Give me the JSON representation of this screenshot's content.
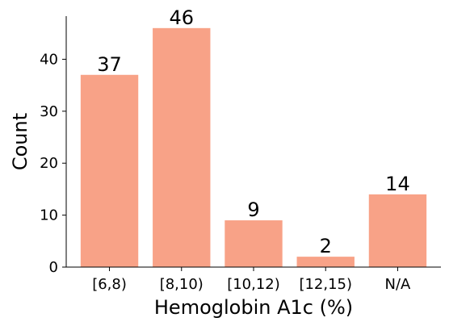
{
  "chart_data": {
    "type": "bar",
    "title": "",
    "xlabel": "Hemoglobin A1c (%)",
    "ylabel": "Count",
    "categories": [
      "[6,8)",
      "[8,10)",
      "[10,12)",
      "[12,15)",
      "N/A"
    ],
    "values": [
      37,
      46,
      9,
      2,
      14
    ],
    "data_labels": [
      "37",
      "46",
      "9",
      "2",
      "14"
    ],
    "ylim": [
      0,
      48.3
    ],
    "yticks": [
      0,
      10,
      20,
      30,
      40
    ],
    "ytick_labels": [
      "0",
      "10",
      "20",
      "30",
      "40"
    ],
    "bar_color": "#f8a287",
    "grid": false,
    "legend": "none"
  }
}
